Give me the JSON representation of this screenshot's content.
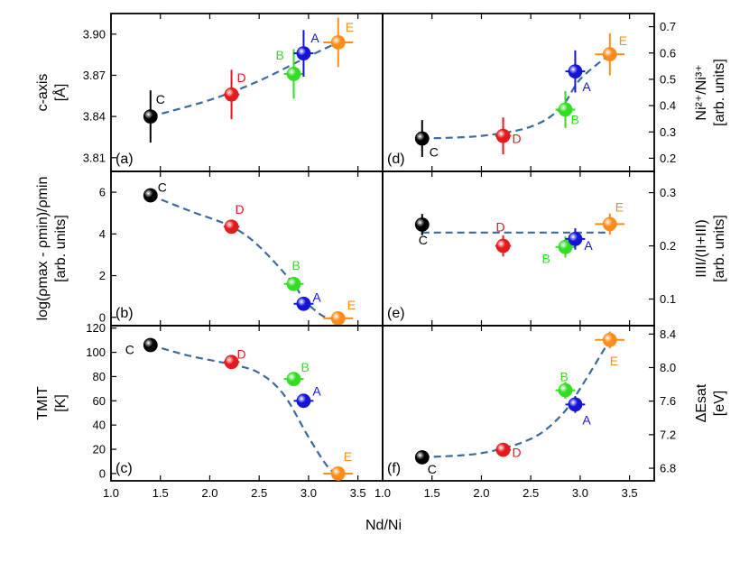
{
  "figure": {
    "xlabel": "Nd/Ni",
    "xticks": [
      "1.0",
      "1.5",
      "2.0",
      "2.5",
      "3.0",
      "3.5"
    ],
    "xlim": [
      1.0,
      3.75
    ]
  },
  "colors": {
    "C": "#000000",
    "D": "#e41a1c",
    "B": "#33dd22",
    "A": "#1414d8",
    "E": "#ff8c1a",
    "fit": "#3b6a9e"
  },
  "chart_data": [
    {
      "type": "scatter",
      "panel": "(a)",
      "side": "left",
      "ylabel_lines": [
        "c-axis",
        "[Å]"
      ],
      "ylim": [
        3.8,
        3.915
      ],
      "yticks": [
        "3.81",
        "3.84",
        "3.87",
        "3.90"
      ],
      "ytick_values": [
        3.81,
        3.84,
        3.87,
        3.9
      ],
      "points": [
        {
          "label": "C",
          "x": 1.4,
          "y": 3.84,
          "xerr": 0.05,
          "yerr": 0.019
        },
        {
          "label": "D",
          "x": 2.22,
          "y": 3.856,
          "xerr": 0.08,
          "yerr": 0.018
        },
        {
          "label": "B",
          "x": 2.85,
          "y": 3.871,
          "xerr": 0.1,
          "yerr": 0.018
        },
        {
          "label": "A",
          "x": 2.95,
          "y": 3.886,
          "xerr": 0.1,
          "yerr": 0.017
        },
        {
          "label": "E",
          "x": 3.3,
          "y": 3.894,
          "xerr": 0.15,
          "yerr": 0.018
        }
      ],
      "fit": [
        [
          1.4,
          3.84
        ],
        [
          2.0,
          3.852
        ],
        [
          2.5,
          3.866
        ],
        [
          2.95,
          3.882
        ],
        [
          3.3,
          3.894
        ]
      ]
    },
    {
      "type": "scatter",
      "panel": "(d)",
      "side": "right",
      "ylabel_lines": [
        "Ni²⁺/Ni³⁺",
        "[arb. units]"
      ],
      "ylim": [
        0.15,
        0.75
      ],
      "yticks": [
        "0.2",
        "0.3",
        "0.4",
        "0.5",
        "0.6",
        "0.7"
      ],
      "ytick_values": [
        0.2,
        0.3,
        0.4,
        0.5,
        0.6,
        0.7
      ],
      "points": [
        {
          "label": "C",
          "x": 1.4,
          "y": 0.275,
          "xerr": 0.05,
          "yerr": 0.07
        },
        {
          "label": "D",
          "x": 2.22,
          "y": 0.285,
          "xerr": 0.08,
          "yerr": 0.07
        },
        {
          "label": "B",
          "x": 2.85,
          "y": 0.385,
          "xerr": 0.1,
          "yerr": 0.07
        },
        {
          "label": "A",
          "x": 2.95,
          "y": 0.53,
          "xerr": 0.1,
          "yerr": 0.08
        },
        {
          "label": "E",
          "x": 3.3,
          "y": 0.595,
          "xerr": 0.15,
          "yerr": 0.08
        }
      ],
      "fit": [
        [
          1.4,
          0.275
        ],
        [
          2.0,
          0.285
        ],
        [
          2.5,
          0.32
        ],
        [
          2.8,
          0.39
        ],
        [
          3.0,
          0.5
        ],
        [
          3.3,
          0.595
        ]
      ]
    },
    {
      "type": "scatter",
      "panel": "(b)",
      "side": "left",
      "ylabel_lines": [
        "log(ρmax - ρmin)/ρmin",
        "[arb. units]"
      ],
      "ylim": [
        -0.4,
        7.0
      ],
      "yticks": [
        "0",
        "2",
        "4",
        "6"
      ],
      "ytick_values": [
        0,
        2,
        4,
        6
      ],
      "points": [
        {
          "label": "C",
          "x": 1.4,
          "y": 5.85,
          "xerr": 0.05,
          "yerr": 0.15
        },
        {
          "label": "D",
          "x": 2.22,
          "y": 4.35,
          "xerr": 0.08,
          "yerr": 0.2
        },
        {
          "label": "B",
          "x": 2.85,
          "y": 1.6,
          "xerr": 0.1,
          "yerr": 0.2
        },
        {
          "label": "A",
          "x": 2.95,
          "y": 0.65,
          "xerr": 0.1,
          "yerr": 0.3
        },
        {
          "label": "E",
          "x": 3.3,
          "y": -0.05,
          "xerr": 0.15,
          "yerr": 0.0
        }
      ],
      "fit": [
        [
          1.4,
          5.85
        ],
        [
          1.8,
          5.1
        ],
        [
          2.22,
          4.35
        ],
        [
          2.5,
          3.4
        ],
        [
          2.85,
          1.6
        ],
        [
          2.95,
          0.85
        ],
        [
          3.15,
          0.05
        ],
        [
          3.3,
          -0.05
        ]
      ]
    },
    {
      "type": "scatter",
      "panel": "(e)",
      "side": "right",
      "ylabel_lines": [
        "IIII/(II+III)",
        "[arb. units]"
      ],
      "ylim": [
        0.05,
        0.34
      ],
      "yticks": [
        "0.1",
        "0.2",
        "0.3"
      ],
      "ytick_values": [
        0.1,
        0.2,
        0.3
      ],
      "points": [
        {
          "label": "C",
          "x": 1.4,
          "y": 0.24,
          "xerr": 0.05,
          "yerr": 0.02
        },
        {
          "label": "D",
          "x": 2.22,
          "y": 0.2,
          "xerr": 0.08,
          "yerr": 0.02
        },
        {
          "label": "B",
          "x": 2.85,
          "y": 0.198,
          "xerr": 0.1,
          "yerr": 0.02
        },
        {
          "label": "A",
          "x": 2.95,
          "y": 0.213,
          "xerr": 0.1,
          "yerr": 0.02
        },
        {
          "label": "E",
          "x": 3.3,
          "y": 0.241,
          "xerr": 0.15,
          "yerr": 0.02
        }
      ],
      "fit": [
        [
          1.4,
          0.225
        ],
        [
          3.3,
          0.225
        ]
      ]
    },
    {
      "type": "scatter",
      "panel": "(c)",
      "side": "left",
      "ylabel_lines": [
        "TMIT",
        "[K]"
      ],
      "ylim": [
        -6,
        122
      ],
      "yticks": [
        "0",
        "20",
        "40",
        "60",
        "80",
        "100",
        "120"
      ],
      "ytick_values": [
        0,
        20,
        40,
        60,
        80,
        100,
        120
      ],
      "points": [
        {
          "label": "C",
          "x": 1.4,
          "y": 106,
          "xerr": 0.05,
          "yerr": 3
        },
        {
          "label": "D",
          "x": 2.22,
          "y": 92,
          "xerr": 0.08,
          "yerr": 3
        },
        {
          "label": "B",
          "x": 2.85,
          "y": 78,
          "xerr": 0.1,
          "yerr": 3
        },
        {
          "label": "A",
          "x": 2.95,
          "y": 60,
          "xerr": 0.1,
          "yerr": 5
        },
        {
          "label": "E",
          "x": 3.3,
          "y": 0,
          "xerr": 0.15,
          "yerr": 3
        }
      ],
      "fit": [
        [
          1.4,
          106
        ],
        [
          1.8,
          97
        ],
        [
          2.22,
          90
        ],
        [
          2.5,
          83
        ],
        [
          2.75,
          65
        ],
        [
          3.0,
          30
        ],
        [
          3.2,
          5
        ],
        [
          3.3,
          0
        ]
      ]
    },
    {
      "type": "scatter",
      "panel": "(f)",
      "side": "right",
      "ylabel_lines": [
        "ΔEsat",
        "[eV]"
      ],
      "ylim": [
        6.65,
        8.5
      ],
      "yticks": [
        "6.8",
        "7.2",
        "7.6",
        "8.0",
        "8.4"
      ],
      "ytick_values": [
        6.8,
        7.2,
        7.6,
        8.0,
        8.4
      ],
      "points": [
        {
          "label": "C",
          "x": 1.4,
          "y": 6.93,
          "xerr": 0.05,
          "yerr": 0.08
        },
        {
          "label": "D",
          "x": 2.22,
          "y": 7.02,
          "xerr": 0.08,
          "yerr": 0.08
        },
        {
          "label": "B",
          "x": 2.85,
          "y": 7.73,
          "xerr": 0.1,
          "yerr": 0.1
        },
        {
          "label": "A",
          "x": 2.95,
          "y": 7.56,
          "xerr": 0.1,
          "yerr": 0.1
        },
        {
          "label": "E",
          "x": 3.3,
          "y": 8.33,
          "xerr": 0.15,
          "yerr": 0.1
        }
      ],
      "fit": [
        [
          1.4,
          6.93
        ],
        [
          2.0,
          6.98
        ],
        [
          2.5,
          7.15
        ],
        [
          2.8,
          7.42
        ],
        [
          3.0,
          7.75
        ],
        [
          3.3,
          8.33
        ]
      ]
    }
  ]
}
